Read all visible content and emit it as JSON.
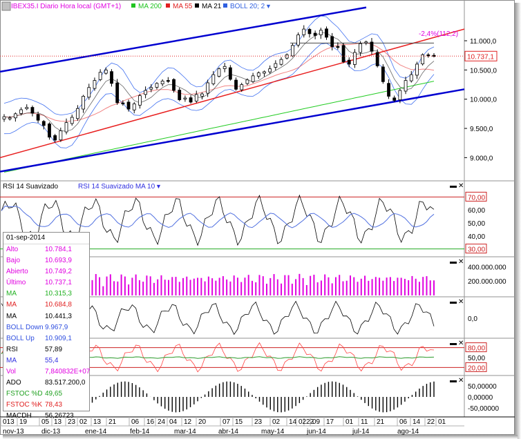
{
  "window": {
    "title": "IBEX35.I Diario Hora local (GMT+1)",
    "indicators": [
      {
        "label": "MA 200",
        "color": "#1fc41f"
      },
      {
        "label": "MA 55",
        "color": "#e02020"
      },
      {
        "label": "MA 21",
        "color": "#000000"
      },
      {
        "label": "BOLL 20; 2",
        "color": "#3060e0"
      }
    ],
    "current_price_label": "10.737,1",
    "fib_label": "-2,4%(112,2)"
  },
  "icons": {
    "minimize": "minimize-icon",
    "close": "close-icon",
    "dropdown": "dropdown-arrow-icon"
  },
  "colors": {
    "price_line": "#e02020",
    "channel": "#0000d0",
    "boll": "#4070f0",
    "ma200": "#22cc22",
    "ma55": "#e83030",
    "ma21": "#222222",
    "volume": "#e000e0",
    "rsi_bound": "#cc2020",
    "rsi_low": "#22aa22",
    "stoch_k": "#ff4040",
    "stoch_d": "#2a9a2a"
  },
  "chart_data": {
    "type": "candlestick",
    "title": "IBEX35.I Diario Hora local (GMT+1)",
    "last_date": "01-sep-2014",
    "y_ticks": [
      "11.000,0",
      "10.500,0",
      "10.000,0",
      "9.500,0",
      "9.000,0"
    ],
    "y_tick_values": [
      11000,
      10500,
      10000,
      9500,
      9000
    ],
    "ylim": [
      8650,
      11650
    ],
    "x_days": [
      "013",
      "19",
      "05",
      "13",
      "23",
      "02",
      "13",
      "21",
      "06",
      "16",
      "24",
      "04",
      "12",
      "20",
      "07",
      "15",
      "23",
      "02",
      "14",
      "22",
      "02",
      "09",
      "17",
      "01",
      "11",
      "21",
      "06",
      "14",
      "22",
      "01"
    ],
    "x_months": [
      "nov-13",
      "dic-13",
      "ene-14",
      "feb-14",
      "mar-14",
      "abr-14",
      "may-14",
      "jun-14",
      "jul-14",
      "ago-14"
    ],
    "close_approx": [
      9700,
      9680,
      9750,
      9820,
      9860,
      9760,
      9640,
      9550,
      9350,
      9300,
      9460,
      9600,
      9690,
      9840,
      10050,
      10200,
      10320,
      10460,
      10500,
      10270,
      9940,
      9930,
      9830,
      9920,
      10060,
      10150,
      10200,
      10270,
      10310,
      10310,
      10150,
      9990,
      10020,
      9950,
      10080,
      10090,
      10280,
      10420,
      10520,
      10560,
      10340,
      10170,
      10250,
      10330,
      10400,
      10450,
      10470,
      10520,
      10610,
      10680,
      10760,
      10920,
      11100,
      11200,
      11120,
      11090,
      11180,
      11060,
      10900,
      10900,
      10640,
      10600,
      10800,
      10950,
      10980,
      10820,
      10570,
      10300,
      10050,
      9980,
      10150,
      10320,
      10420,
      10600,
      10760,
      10750,
      10737
    ],
    "channel": {
      "upper": {
        "x": [
          "nov-13",
          "jun-14"
        ],
        "y": [
          10470,
          11570
        ]
      },
      "lower": {
        "x": [
          "nov-13",
          "sep-14"
        ],
        "y": [
          8760,
          10170
        ]
      },
      "red": {
        "x": [
          "nov-13",
          "sep-14"
        ],
        "y": [
          9000,
          11200
        ]
      },
      "horizontal_level": 10960
    },
    "rsi": {
      "label": "RSI 14 Suavizado",
      "ma_label": "RSI 14 Suavizado MA 10",
      "upper": "70,00",
      "lower": "30,00",
      "ticks": [
        "70,00",
        "60,00",
        "50,00",
        "40,00",
        "30,00"
      ],
      "last": 57.89,
      "ma_last": 55.4
    },
    "volume": {
      "ticks": [
        "400.000.000",
        "200.000.000"
      ],
      "last": 78408320
    },
    "macd": {
      "ticks": [
        "0,0"
      ]
    },
    "stochastic": {
      "ticks": [
        "80,00",
        "50,00",
        "20,00"
      ],
      "k_last": 78.43,
      "d_last": 49.65
    },
    "macdh": {
      "ticks": [
        "50,00000",
        "0,00000",
        "-50,00000"
      ],
      "last": 56.26723
    }
  },
  "data_window": {
    "date": "01-sep-2014",
    "rows": [
      {
        "label": "Alto",
        "value": "10.784,1",
        "color": "#e000e0"
      },
      {
        "label": "Bajo",
        "value": "10.693,9",
        "color": "#e000e0"
      },
      {
        "label": "Abierto",
        "value": "10.749,2",
        "color": "#e000e0"
      },
      {
        "label": "Último",
        "value": "10.737,1",
        "color": "#e000e0"
      },
      {
        "label": "MA",
        "value": "10.315,3",
        "color": "#20b020"
      },
      {
        "label": "MA",
        "value": "10.684,8",
        "color": "#e02020"
      },
      {
        "label": "MA",
        "value": "10.441,3",
        "color": "#000000"
      },
      {
        "label": "BOLL Down",
        "value": "9.967,9",
        "color": "#3050e0"
      },
      {
        "label": "BOLL Up",
        "value": "10.909,1",
        "color": "#3050e0"
      },
      {
        "label": "RSI",
        "value": "57,89",
        "color": "#000000"
      },
      {
        "label": "MA",
        "value": "55,4",
        "color": "#3030e0"
      },
      {
        "label": "Vol",
        "value": "7,840832E+07",
        "color": "#e000e0"
      },
      {
        "label": "ADO",
        "value": "83.517.200,0",
        "color": "#000000"
      },
      {
        "label": "FSTOC %D",
        "value": "49,65",
        "color": "#20a020"
      },
      {
        "label": "FSTOC %K",
        "value": "78,43",
        "color": "#e02020"
      },
      {
        "label": "MACDH",
        "value": "56,26723",
        "color": "#000000"
      }
    ]
  }
}
